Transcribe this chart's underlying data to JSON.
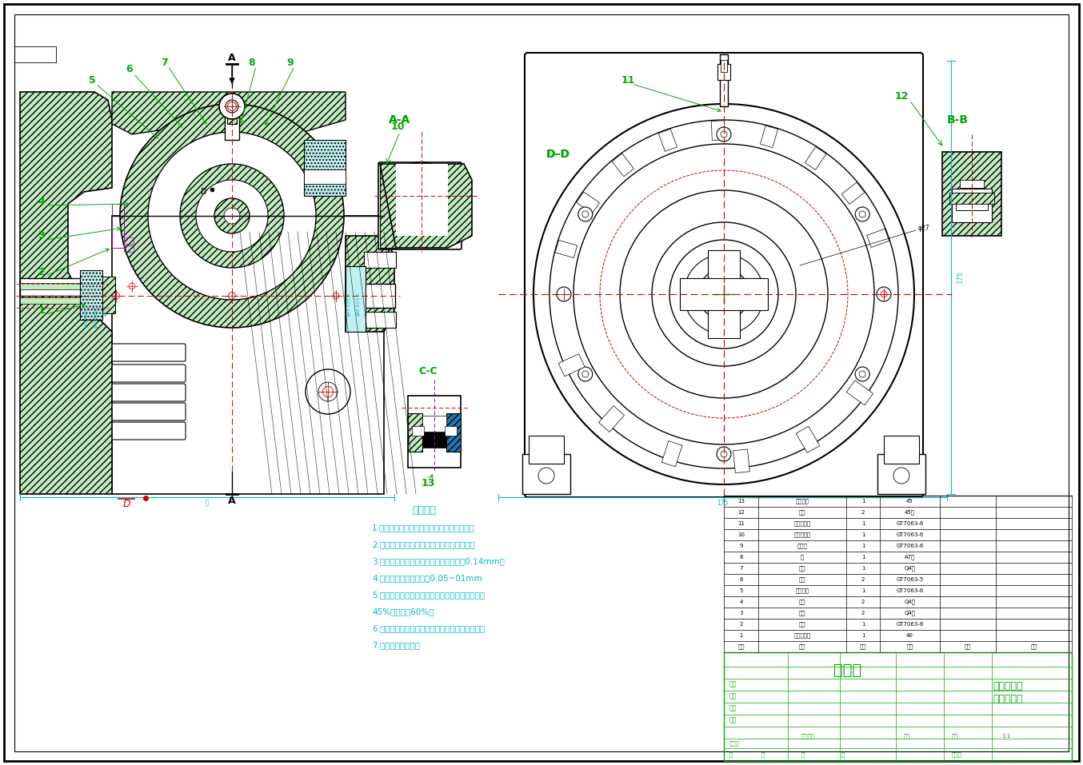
{
  "bg": "#ffffff",
  "BK": "#000000",
  "GR": "#00aa00",
  "RD": "#cc0000",
  "CY": "#00bbcc",
  "MG": "#aa00aa",
  "BL": "#0000cc",
  "hatch_fc": "#c0ecc0",
  "cyan_fc": "#c0f0f0",
  "title_cn": "装配图",
  "subtitle_cn": "一齿差行星齿轮减速器",
  "notes_title": "技术要求",
  "notes": [
    "1.装配前，检查各零件，找出并去除毛刺等。",
    "2.减速器各齿轮啊啥等已经调试合格，涂油。",
    "3.轴承盖密封吹刀具封密，密封差不小于0.14mm；",
    "4.密封圈和封盖的间隙量0.05~01mm",
    "5.安装完毕，用少量石耳什封密料密封，封进入不",
    "45%，封出不60%。",
    "6.函数器模型多小尺寸小水机，不允许使用家占机",
    "7.整机外层涂灰色。"
  ],
  "fig_width": 13.54,
  "fig_height": 9.57,
  "dpi": 100,
  "table_rows": [
    [
      "13",
      "大行星架",
      "1",
      "45",
      "",
      ""
    ],
    [
      "12",
      "销轴",
      "2",
      "45鑰",
      "",
      ""
    ],
    [
      "11",
      "内齿圈组件",
      "1",
      "GT7063-6",
      "",
      ""
    ],
    [
      "10",
      "内齿圈组件",
      "1",
      "GT7063-6",
      "",
      ""
    ],
    [
      "9",
      "风口盖",
      "1",
      "GT7063-6",
      "",
      ""
    ],
    [
      "8",
      "轴",
      "1",
      "A7鑰",
      "",
      ""
    ],
    [
      "7",
      "齿片",
      "1",
      "Q4鑰",
      "",
      ""
    ],
    [
      "6",
      "弹簧",
      "2",
      "GT7063-5",
      "",
      ""
    ],
    [
      "5",
      "内齿圈盖",
      "1",
      "GT7063-6",
      "",
      ""
    ],
    [
      "4",
      "弹簧",
      "2",
      "Q4鑰",
      "",
      ""
    ],
    [
      "3",
      "螺帽",
      "2",
      "Q4鑰",
      "",
      ""
    ],
    [
      "2",
      "偏轴",
      "1",
      "GT7063-6",
      "",
      ""
    ],
    [
      "1",
      "大行星架圈",
      "1",
      "40",
      "",
      ""
    ],
    [
      "序号",
      "名称",
      "数量",
      "材料",
      "备注",
      "图号"
    ]
  ]
}
